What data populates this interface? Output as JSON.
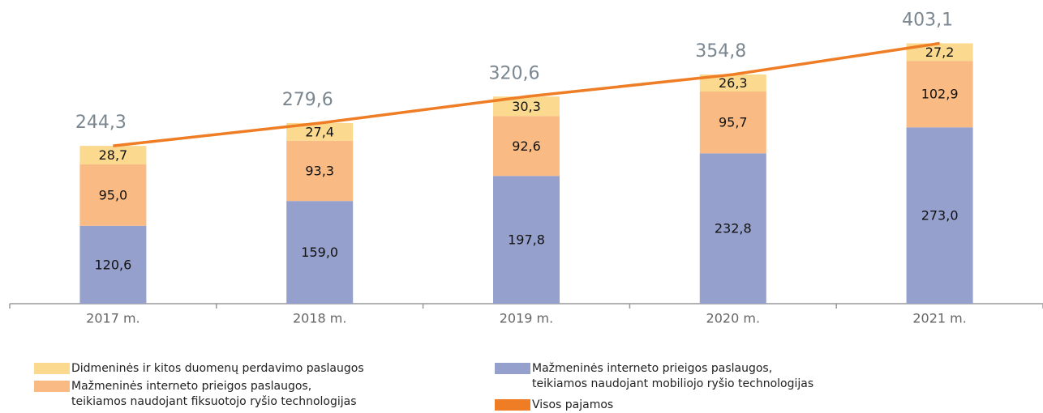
{
  "chart_data": {
    "type": "bar",
    "categories": [
      "2017 m.",
      "2018 m.",
      "2019 m.",
      "2020 m.",
      "2021 m."
    ],
    "ylim": [
      0,
      420
    ],
    "series": [
      {
        "name": "Didmeninės ir kitos duomenų perdavimo paslaugos",
        "color": "#fbd98f",
        "values": [
          28.7,
          27.4,
          30.3,
          26.3,
          27.2
        ],
        "value_labels": [
          "28,7",
          "27,4",
          "30,3",
          "26,3",
          "27,2"
        ]
      },
      {
        "name": "Mažmeninės interneto prieigos paslaugos,\nteikiamos naudojant fiksuotojo ryšio technologijas",
        "color": "#f9bb83",
        "values": [
          95.0,
          93.3,
          92.6,
          95.7,
          102.9
        ],
        "value_labels": [
          "95,0",
          "93,3",
          "92,6",
          "95,7",
          "102,9"
        ]
      },
      {
        "name": "Mažmeninės interneto prieigos paslaugos,\nteikiamos naudojant mobiliojo ryšio technologijas",
        "color": "#96a0cc",
        "values": [
          120.6,
          159.0,
          197.8,
          232.8,
          273.0
        ],
        "value_labels": [
          "120,6",
          "159,0",
          "197,8",
          "232,8",
          "273,0"
        ]
      },
      {
        "name": "Visos pajamos",
        "type": "line",
        "color": "#ee7d25",
        "values": [
          244.3,
          279.6,
          320.6,
          354.8,
          403.1
        ],
        "value_labels": [
          "244,3",
          "279,6",
          "320,6",
          "354,8",
          "403,1"
        ]
      }
    ]
  }
}
